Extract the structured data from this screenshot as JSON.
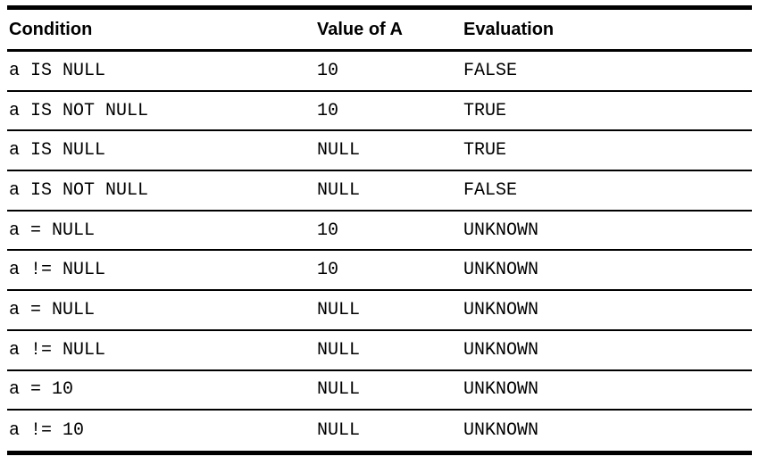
{
  "table": {
    "columns": [
      "Condition",
      "Value of A",
      "Evaluation"
    ],
    "rows": [
      {
        "condition": "a IS NULL",
        "value_of_a": "10",
        "evaluation": "FALSE"
      },
      {
        "condition": "a IS NOT NULL",
        "value_of_a": "10",
        "evaluation": "TRUE"
      },
      {
        "condition": "a IS NULL",
        "value_of_a": "NULL",
        "evaluation": "TRUE"
      },
      {
        "condition": "a IS NOT NULL",
        "value_of_a": "NULL",
        "evaluation": "FALSE"
      },
      {
        "condition": "a = NULL",
        "value_of_a": "10",
        "evaluation": "UNKNOWN"
      },
      {
        "condition": "a != NULL",
        "value_of_a": "10",
        "evaluation": "UNKNOWN"
      },
      {
        "condition": "a = NULL",
        "value_of_a": "NULL",
        "evaluation": "UNKNOWN"
      },
      {
        "condition": "a != NULL",
        "value_of_a": "NULL",
        "evaluation": "UNKNOWN"
      },
      {
        "condition": "a = 10",
        "value_of_a": "NULL",
        "evaluation": "UNKNOWN"
      },
      {
        "condition": "a != 10",
        "value_of_a": "NULL",
        "evaluation": "UNKNOWN"
      }
    ]
  },
  "colors": {
    "text": "#000000",
    "border": "#000000",
    "background": "#ffffff"
  }
}
